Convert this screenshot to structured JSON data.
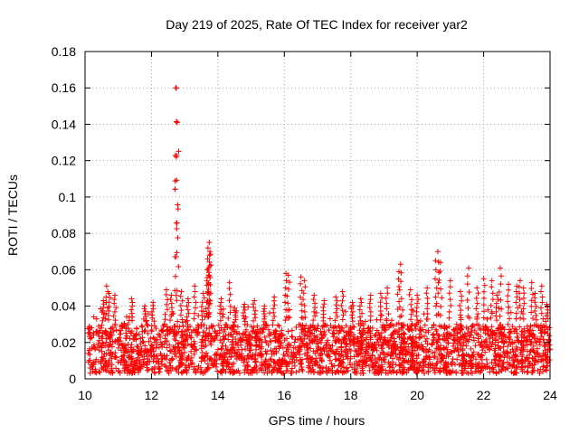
{
  "chart_data": {
    "type": "scatter",
    "title": "Day 219 of 2025, Rate Of TEC Index for receiver yar2",
    "xlabel": "GPS time / hours",
    "ylabel": "ROTI / TECUs",
    "xlim": [
      10,
      24
    ],
    "ylim": [
      0,
      0.18
    ],
    "x_ticks": [
      "10",
      "12",
      "14",
      "16",
      "18",
      "20",
      "22",
      "24"
    ],
    "y_ticks": [
      "0",
      "0.02",
      "0.04",
      "0.06",
      "0.08",
      "0.1",
      "0.12",
      "0.14",
      "0.16",
      "0.18"
    ],
    "grid": true,
    "marker": "+",
    "color": "#ff0000",
    "series": [
      {
        "name": "ROTI",
        "x": [
          12.75,
          12.78,
          12.75,
          12.73,
          13.74,
          13.7,
          13.76,
          13.72,
          13.68,
          13.75,
          14.35,
          10.65,
          10.72,
          10.9,
          10.55,
          11.4,
          11.8,
          12.05,
          12.45,
          12.6,
          12.9,
          13.1,
          13.3,
          13.55,
          14.1,
          14.5,
          14.8,
          15.1,
          15.4,
          15.7,
          16.05,
          16.12,
          16.5,
          16.6,
          16.9,
          17.2,
          17.55,
          17.75,
          18.05,
          18.3,
          18.6,
          18.9,
          19.1,
          19.45,
          19.5,
          19.8,
          20.0,
          20.3,
          20.55,
          20.62,
          20.7,
          21.0,
          21.3,
          21.55,
          21.8,
          22.0,
          22.25,
          22.4,
          22.5,
          22.75,
          23.0,
          23.1,
          23.2,
          23.45,
          23.55,
          23.75,
          23.9
        ],
        "y": [
          0.16,
          0.141,
          0.122,
          0.16,
          0.075,
          0.072,
          0.07,
          0.061,
          0.06,
          0.068,
          0.053,
          0.051,
          0.047,
          0.046,
          0.043,
          0.044,
          0.04,
          0.042,
          0.049,
          0.046,
          0.048,
          0.044,
          0.051,
          0.047,
          0.044,
          0.039,
          0.041,
          0.043,
          0.04,
          0.045,
          0.058,
          0.057,
          0.056,
          0.054,
          0.046,
          0.043,
          0.045,
          0.048,
          0.042,
          0.044,
          0.046,
          0.047,
          0.05,
          0.059,
          0.063,
          0.049,
          0.046,
          0.05,
          0.065,
          0.07,
          0.064,
          0.054,
          0.048,
          0.061,
          0.05,
          0.055,
          0.054,
          0.046,
          0.061,
          0.052,
          0.051,
          0.054,
          0.05,
          0.053,
          0.047,
          0.051,
          0.041
        ],
        "baseline_band": {
          "x_range": [
            10.1,
            24.0
          ],
          "y_range": [
            0.003,
            0.03
          ],
          "density_note": "continuous dense cloud of points"
        }
      }
    ]
  }
}
